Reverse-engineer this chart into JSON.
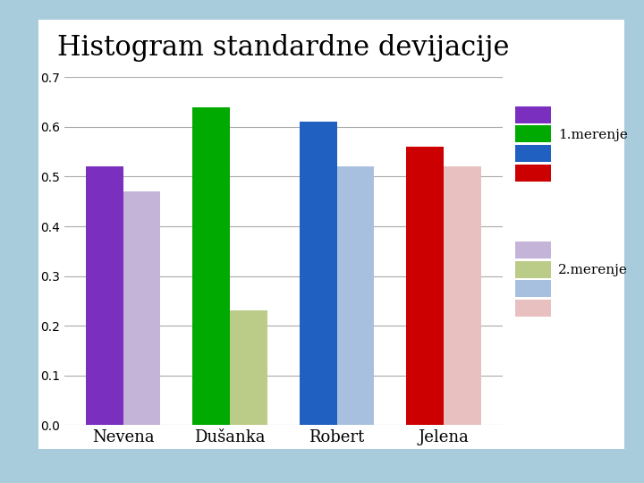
{
  "title": "Histogram standardne devijacije",
  "categories": [
    "Nevena",
    "Dušanka",
    "Robert",
    "Jelena"
  ],
  "merenje1_values": [
    0.52,
    0.64,
    0.61,
    0.56
  ],
  "merenje2_values": [
    0.47,
    0.23,
    0.52,
    0.52
  ],
  "merenje1_colors": [
    "#7B2FBE",
    "#00AA00",
    "#2060C0",
    "#CC0000"
  ],
  "merenje2_colors": [
    "#C4B4D8",
    "#BBCC88",
    "#A8C0E0",
    "#E8C0C0"
  ],
  "legend1_label": "1.merenje",
  "legend2_label": "2.merenje",
  "ylim": [
    0,
    0.7
  ],
  "yticks": [
    0,
    0.1,
    0.2,
    0.3,
    0.4,
    0.5,
    0.6,
    0.7
  ],
  "background_color": "#A8CCDC",
  "plot_bg_color": "#FFFFFF",
  "title_fontsize": 22,
  "bar_width": 0.35,
  "grid_color": "#AAAAAA",
  "tick_fontsize": 10,
  "xlabel_fontsize": 13
}
